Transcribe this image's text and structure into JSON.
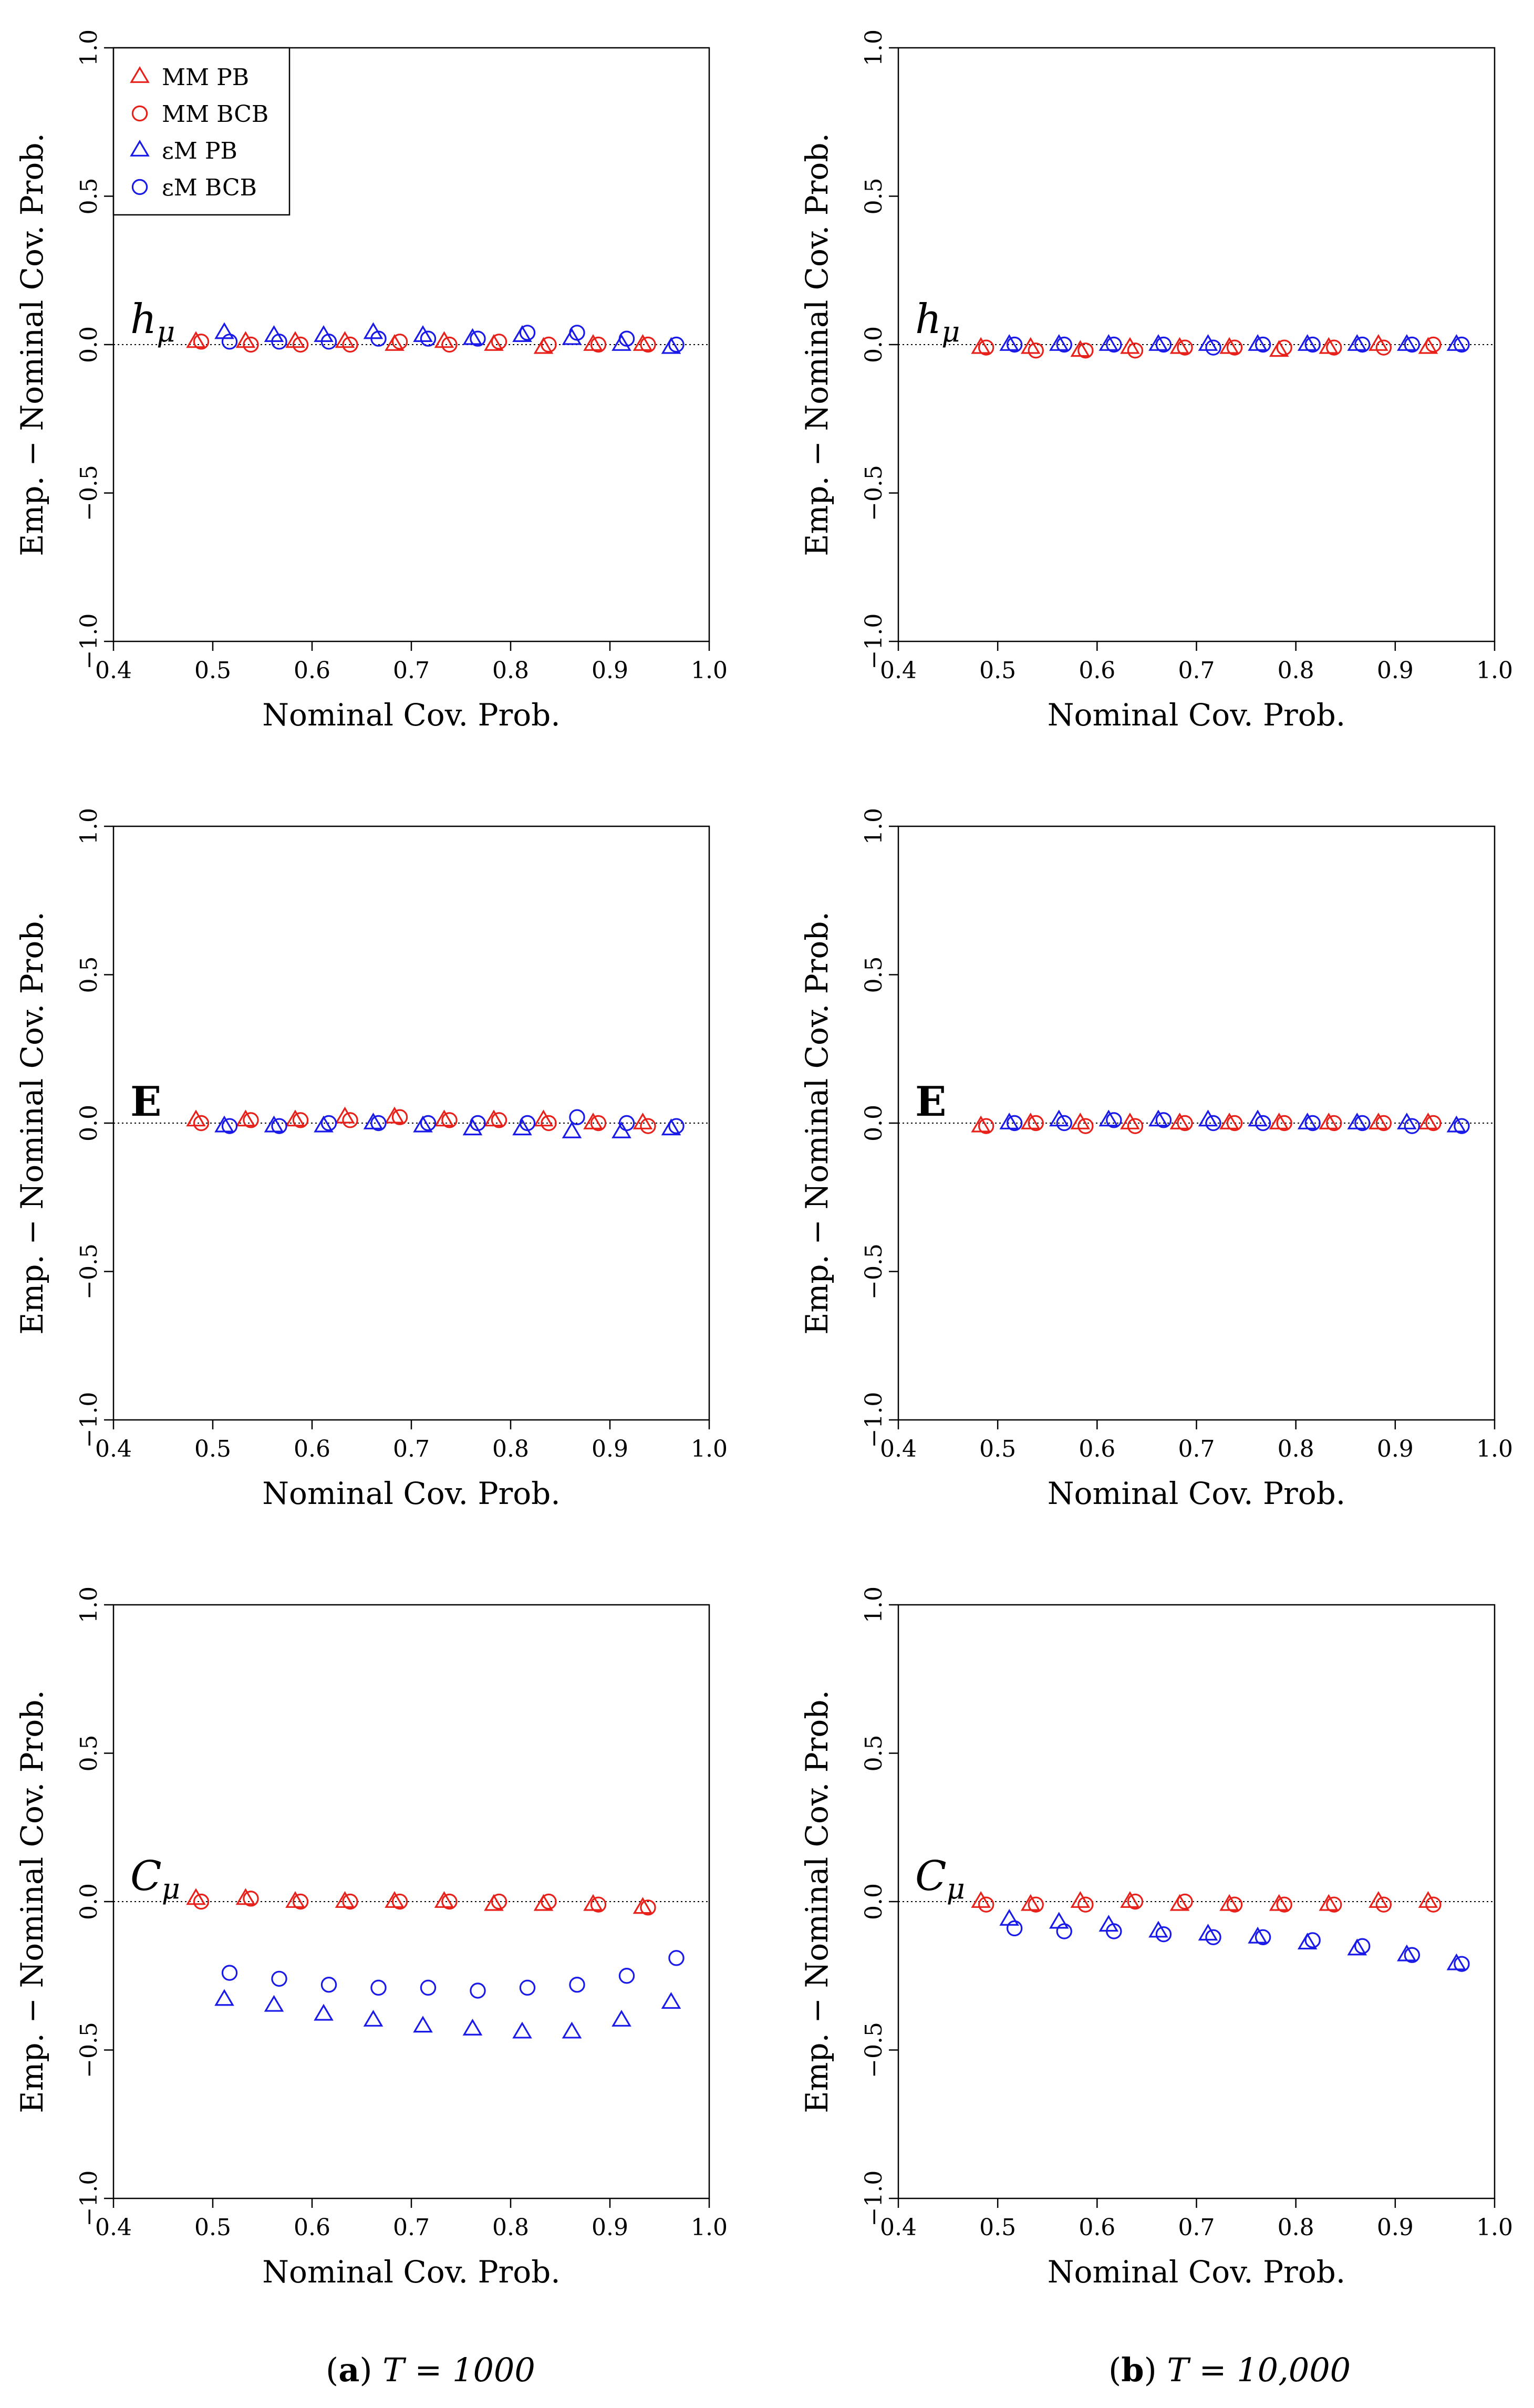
{
  "figure": {
    "captions": [
      {
        "label": "a",
        "text": "T = 1000"
      },
      {
        "label": "b",
        "text": "T = 10,000"
      }
    ]
  },
  "legend": {
    "entries": [
      {
        "label": "MM PB",
        "marker": "triangle",
        "color": "#e8201a"
      },
      {
        "label": "MM BCB",
        "marker": "circle",
        "color": "#e8201a"
      },
      {
        "label": "εM PB",
        "marker": "triangle",
        "color": "#1a1ae8"
      },
      {
        "label": "εM BCB",
        "marker": "circle",
        "color": "#1a1ae8"
      }
    ]
  },
  "colors": {
    "red": "#e8201a",
    "blue": "#1a1ae8"
  },
  "chart_data": [
    {
      "type": "scatter",
      "panel": "a",
      "row": 0,
      "annotation": "h_μ",
      "xlabel": "Nominal Cov. Prob.",
      "ylabel": "Emp. − Nominal Cov. Prob.",
      "xlim": [
        0.4,
        1.0
      ],
      "ylim": [
        -1.0,
        1.0
      ],
      "xticks": [
        "0.4",
        "0.5",
        "0.6",
        "0.7",
        "0.8",
        "0.9",
        "1.0"
      ],
      "yticks": [
        "−1.0",
        "−0.5",
        "0.0",
        "0.5",
        "1.0"
      ],
      "reference_line": 0.0,
      "x": [
        0.5,
        0.55,
        0.6,
        0.65,
        0.7,
        0.75,
        0.8,
        0.85,
        0.9,
        0.95
      ],
      "series": [
        {
          "name": "MM PB",
          "values": [
            0.01,
            0.01,
            0.01,
            0.01,
            0.0,
            0.01,
            0.0,
            -0.01,
            0.0,
            0.0
          ]
        },
        {
          "name": "MM BCB",
          "values": [
            0.01,
            0.0,
            0.0,
            0.0,
            0.01,
            0.0,
            0.01,
            0.0,
            0.0,
            0.0
          ]
        },
        {
          "name": "εM PB",
          "values": [
            0.04,
            0.03,
            0.03,
            0.04,
            0.03,
            0.02,
            0.03,
            0.02,
            0.0,
            -0.01
          ]
        },
        {
          "name": "εM BCB",
          "values": [
            0.01,
            0.01,
            0.01,
            0.02,
            0.02,
            0.02,
            0.04,
            0.04,
            0.02,
            0.0
          ]
        }
      ]
    },
    {
      "type": "scatter",
      "panel": "b",
      "row": 0,
      "annotation": "h_μ",
      "xlabel": "Nominal Cov. Prob.",
      "ylabel": "Emp. − Nominal Cov. Prob.",
      "xlim": [
        0.4,
        1.0
      ],
      "ylim": [
        -1.0,
        1.0
      ],
      "xticks": [
        "0.4",
        "0.5",
        "0.6",
        "0.7",
        "0.8",
        "0.9",
        "1.0"
      ],
      "yticks": [
        "−1.0",
        "−0.5",
        "0.0",
        "0.5",
        "1.0"
      ],
      "reference_line": 0.0,
      "x": [
        0.5,
        0.55,
        0.6,
        0.65,
        0.7,
        0.75,
        0.8,
        0.85,
        0.9,
        0.95
      ],
      "series": [
        {
          "name": "MM PB",
          "values": [
            -0.01,
            -0.01,
            -0.02,
            -0.01,
            -0.01,
            -0.01,
            -0.02,
            -0.01,
            0.0,
            -0.01
          ]
        },
        {
          "name": "MM BCB",
          "values": [
            -0.01,
            -0.02,
            -0.02,
            -0.02,
            -0.01,
            -0.01,
            -0.01,
            -0.01,
            -0.01,
            0.0
          ]
        },
        {
          "name": "εM PB",
          "values": [
            0.0,
            0.0,
            0.0,
            0.0,
            0.0,
            0.0,
            0.0,
            0.0,
            0.0,
            0.0
          ]
        },
        {
          "name": "εM BCB",
          "values": [
            0.0,
            0.0,
            0.0,
            0.0,
            -0.01,
            0.0,
            0.0,
            0.0,
            0.0,
            0.0
          ]
        }
      ]
    },
    {
      "type": "scatter",
      "panel": "a",
      "row": 1,
      "annotation": "E",
      "xlabel": "Nominal Cov. Prob.",
      "ylabel": "Emp. − Nominal Cov. Prob.",
      "xlim": [
        0.4,
        1.0
      ],
      "ylim": [
        -1.0,
        1.0
      ],
      "xticks": [
        "0.4",
        "0.5",
        "0.6",
        "0.7",
        "0.8",
        "0.9",
        "1.0"
      ],
      "yticks": [
        "−1.0",
        "−0.5",
        "0.0",
        "0.5",
        "1.0"
      ],
      "reference_line": 0.0,
      "x": [
        0.5,
        0.55,
        0.6,
        0.65,
        0.7,
        0.75,
        0.8,
        0.85,
        0.9,
        0.95
      ],
      "series": [
        {
          "name": "MM PB",
          "values": [
            0.01,
            0.01,
            0.01,
            0.02,
            0.02,
            0.01,
            0.01,
            0.01,
            0.0,
            0.0
          ]
        },
        {
          "name": "MM BCB",
          "values": [
            0.0,
            0.01,
            0.01,
            0.01,
            0.02,
            0.01,
            0.01,
            0.0,
            0.0,
            -0.01
          ]
        },
        {
          "name": "εM PB",
          "values": [
            -0.01,
            -0.01,
            -0.01,
            0.0,
            -0.01,
            -0.02,
            -0.02,
            -0.03,
            -0.03,
            -0.02
          ]
        },
        {
          "name": "εM BCB",
          "values": [
            -0.01,
            -0.01,
            0.0,
            0.0,
            0.0,
            0.0,
            0.0,
            0.02,
            0.0,
            -0.01
          ]
        }
      ]
    },
    {
      "type": "scatter",
      "panel": "b",
      "row": 1,
      "annotation": "E",
      "xlabel": "Nominal Cov. Prob.",
      "ylabel": "Emp. − Nominal Cov. Prob.",
      "xlim": [
        0.4,
        1.0
      ],
      "ylim": [
        -1.0,
        1.0
      ],
      "xticks": [
        "0.4",
        "0.5",
        "0.6",
        "0.7",
        "0.8",
        "0.9",
        "1.0"
      ],
      "yticks": [
        "−1.0",
        "−0.5",
        "0.0",
        "0.5",
        "1.0"
      ],
      "reference_line": 0.0,
      "x": [
        0.5,
        0.55,
        0.6,
        0.65,
        0.7,
        0.75,
        0.8,
        0.85,
        0.9,
        0.95
      ],
      "series": [
        {
          "name": "MM PB",
          "values": [
            -0.01,
            0.0,
            0.0,
            0.0,
            0.0,
            0.0,
            0.0,
            0.0,
            0.0,
            0.0
          ]
        },
        {
          "name": "MM BCB",
          "values": [
            -0.01,
            0.0,
            -0.01,
            -0.01,
            0.0,
            0.0,
            0.0,
            0.0,
            0.0,
            0.0
          ]
        },
        {
          "name": "εM PB",
          "values": [
            0.0,
            0.01,
            0.01,
            0.01,
            0.01,
            0.01,
            0.0,
            0.0,
            0.0,
            -0.01
          ]
        },
        {
          "name": "εM BCB",
          "values": [
            0.0,
            0.0,
            0.01,
            0.01,
            0.0,
            0.0,
            0.0,
            0.0,
            -0.01,
            -0.01
          ]
        }
      ]
    },
    {
      "type": "scatter",
      "panel": "a",
      "row": 2,
      "annotation": "C_μ",
      "xlabel": "Nominal Cov. Prob.",
      "ylabel": "Emp. − Nominal Cov. Prob.",
      "xlim": [
        0.4,
        1.0
      ],
      "ylim": [
        -1.0,
        1.0
      ],
      "xticks": [
        "0.4",
        "0.5",
        "0.6",
        "0.7",
        "0.8",
        "0.9",
        "1.0"
      ],
      "yticks": [
        "−1.0",
        "−0.5",
        "0.0",
        "0.5",
        "1.0"
      ],
      "reference_line": 0.0,
      "x": [
        0.5,
        0.55,
        0.6,
        0.65,
        0.7,
        0.75,
        0.8,
        0.85,
        0.9,
        0.95
      ],
      "series": [
        {
          "name": "MM PB",
          "values": [
            0.01,
            0.01,
            0.0,
            0.0,
            0.0,
            0.0,
            -0.01,
            -0.01,
            -0.01,
            -0.02
          ]
        },
        {
          "name": "MM BCB",
          "values": [
            0.0,
            0.01,
            0.0,
            0.0,
            0.0,
            0.0,
            0.0,
            0.0,
            -0.01,
            -0.02
          ]
        },
        {
          "name": "εM PB",
          "values": [
            -0.33,
            -0.35,
            -0.38,
            -0.4,
            -0.42,
            -0.43,
            -0.44,
            -0.44,
            -0.4,
            -0.34
          ]
        },
        {
          "name": "εM BCB",
          "values": [
            -0.24,
            -0.26,
            -0.28,
            -0.29,
            -0.29,
            -0.3,
            -0.29,
            -0.28,
            -0.25,
            -0.19
          ]
        }
      ]
    },
    {
      "type": "scatter",
      "panel": "b",
      "row": 2,
      "annotation": "C_μ",
      "xlabel": "Nominal Cov. Prob.",
      "ylabel": "Emp. − Nominal Cov. Prob.",
      "xlim": [
        0.4,
        1.0
      ],
      "ylim": [
        -1.0,
        1.0
      ],
      "xticks": [
        "0.4",
        "0.5",
        "0.6",
        "0.7",
        "0.8",
        "0.9",
        "1.0"
      ],
      "yticks": [
        "−1.0",
        "−0.5",
        "0.0",
        "0.5",
        "1.0"
      ],
      "reference_line": 0.0,
      "x": [
        0.5,
        0.55,
        0.6,
        0.65,
        0.7,
        0.75,
        0.8,
        0.85,
        0.9,
        0.95
      ],
      "series": [
        {
          "name": "MM PB",
          "values": [
            0.0,
            -0.01,
            0.0,
            0.0,
            -0.01,
            -0.01,
            -0.01,
            -0.01,
            0.0,
            0.0
          ]
        },
        {
          "name": "MM BCB",
          "values": [
            -0.01,
            -0.01,
            -0.01,
            0.0,
            0.0,
            -0.01,
            -0.01,
            -0.01,
            -0.01,
            -0.01
          ]
        },
        {
          "name": "εM PB",
          "values": [
            -0.06,
            -0.07,
            -0.08,
            -0.1,
            -0.11,
            -0.12,
            -0.14,
            -0.16,
            -0.18,
            -0.21
          ]
        },
        {
          "name": "εM BCB",
          "values": [
            -0.09,
            -0.1,
            -0.1,
            -0.11,
            -0.12,
            -0.12,
            -0.13,
            -0.15,
            -0.18,
            -0.21
          ]
        }
      ]
    }
  ]
}
